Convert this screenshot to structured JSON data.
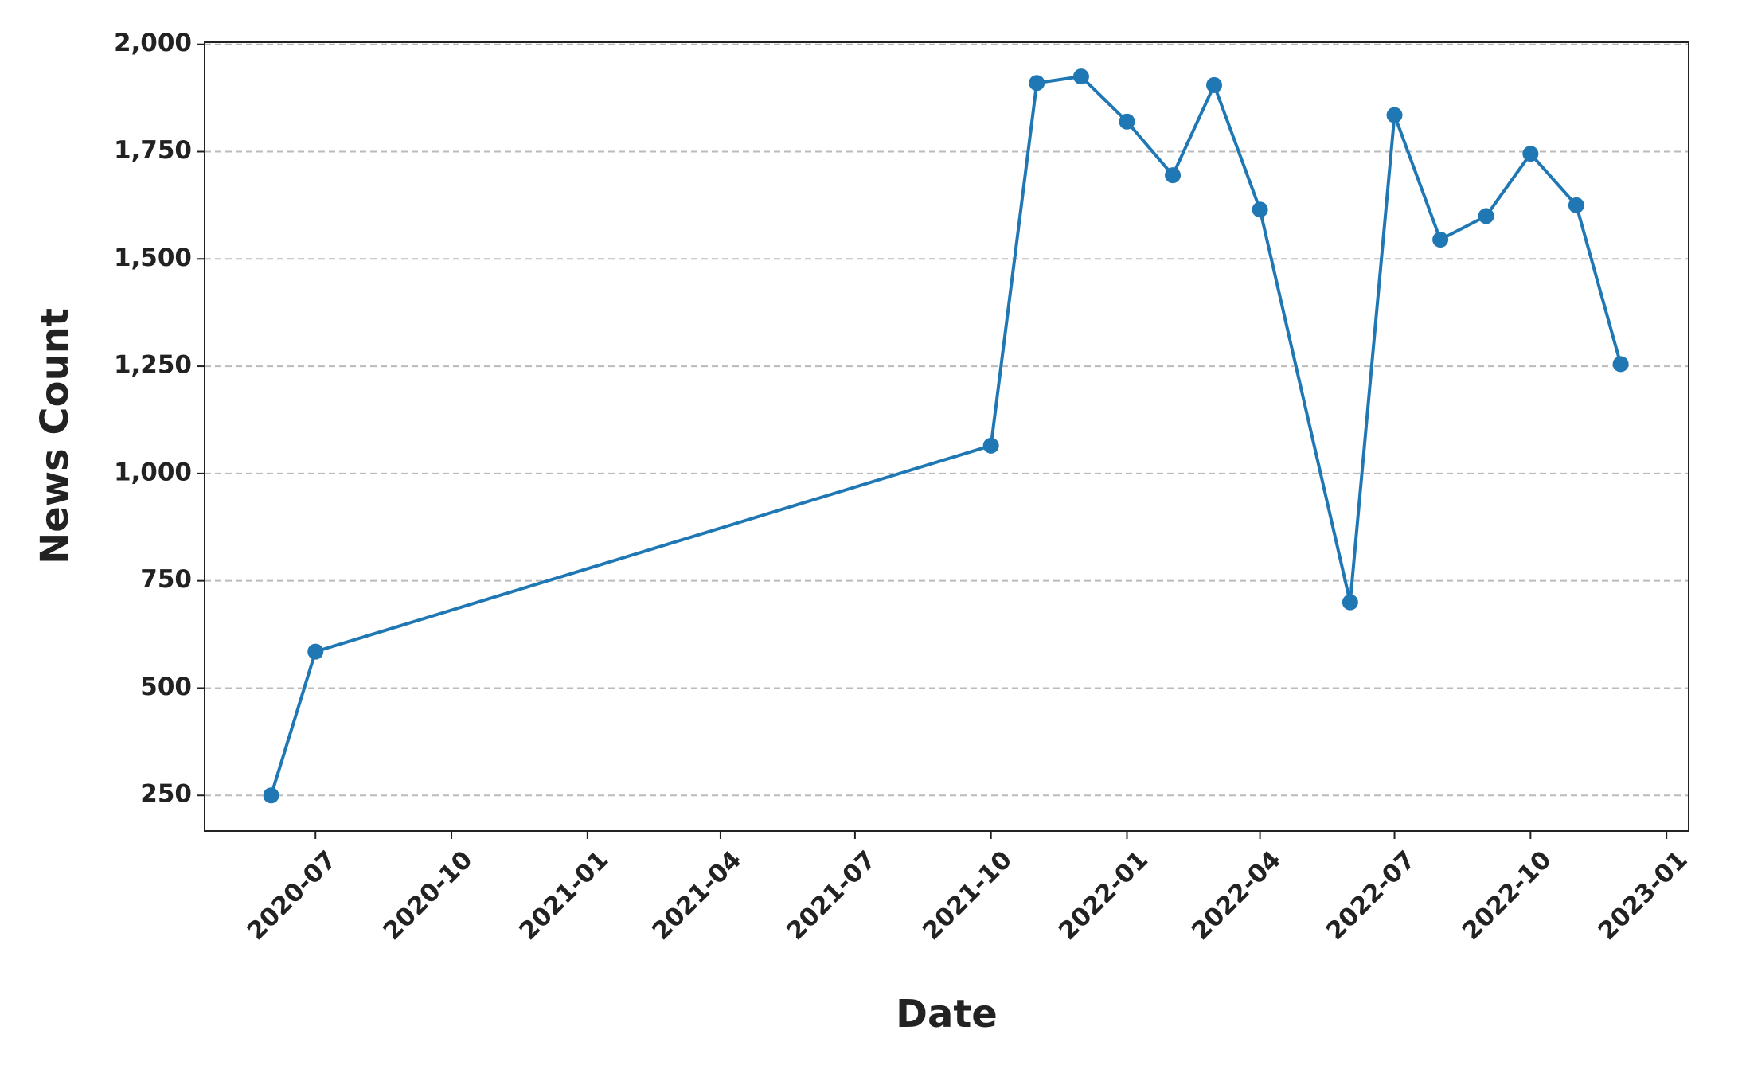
{
  "chart_data": {
    "type": "line",
    "x_label": "Date",
    "y_label": "News Count",
    "x": [
      "2020-06",
      "2020-07",
      "2021-10",
      "2021-11",
      "2021-12",
      "2022-01",
      "2022-02",
      "2022-03",
      "2022-04",
      "2022-06",
      "2022-07",
      "2022-08",
      "2022-09",
      "2022-10",
      "2022-11",
      "2022-12"
    ],
    "values": [
      250,
      585,
      1065,
      1910,
      1925,
      1820,
      1695,
      1905,
      1615,
      700,
      1835,
      1545,
      1600,
      1745,
      1625,
      1255
    ],
    "color": "#1f77b4",
    "xlim": [
      "2020-04-17",
      "2023-01-16"
    ],
    "xticks": [
      "2020-07",
      "2020-10",
      "2021-01",
      "2021-04",
      "2021-07",
      "2021-10",
      "2022-01",
      "2022-04",
      "2022-07",
      "2022-10",
      "2023-01"
    ],
    "ylim": [
      167,
      2005
    ],
    "yticks": [
      250,
      500,
      750,
      {
        "value": 1000,
        "label": "1,000"
      },
      {
        "value": 1250,
        "label": "1,250"
      },
      {
        "value": 1500,
        "label": "1,500"
      },
      {
        "value": 1750,
        "label": "1,750"
      },
      {
        "value": 2000,
        "label": "2,000"
      }
    ],
    "grid": true
  }
}
